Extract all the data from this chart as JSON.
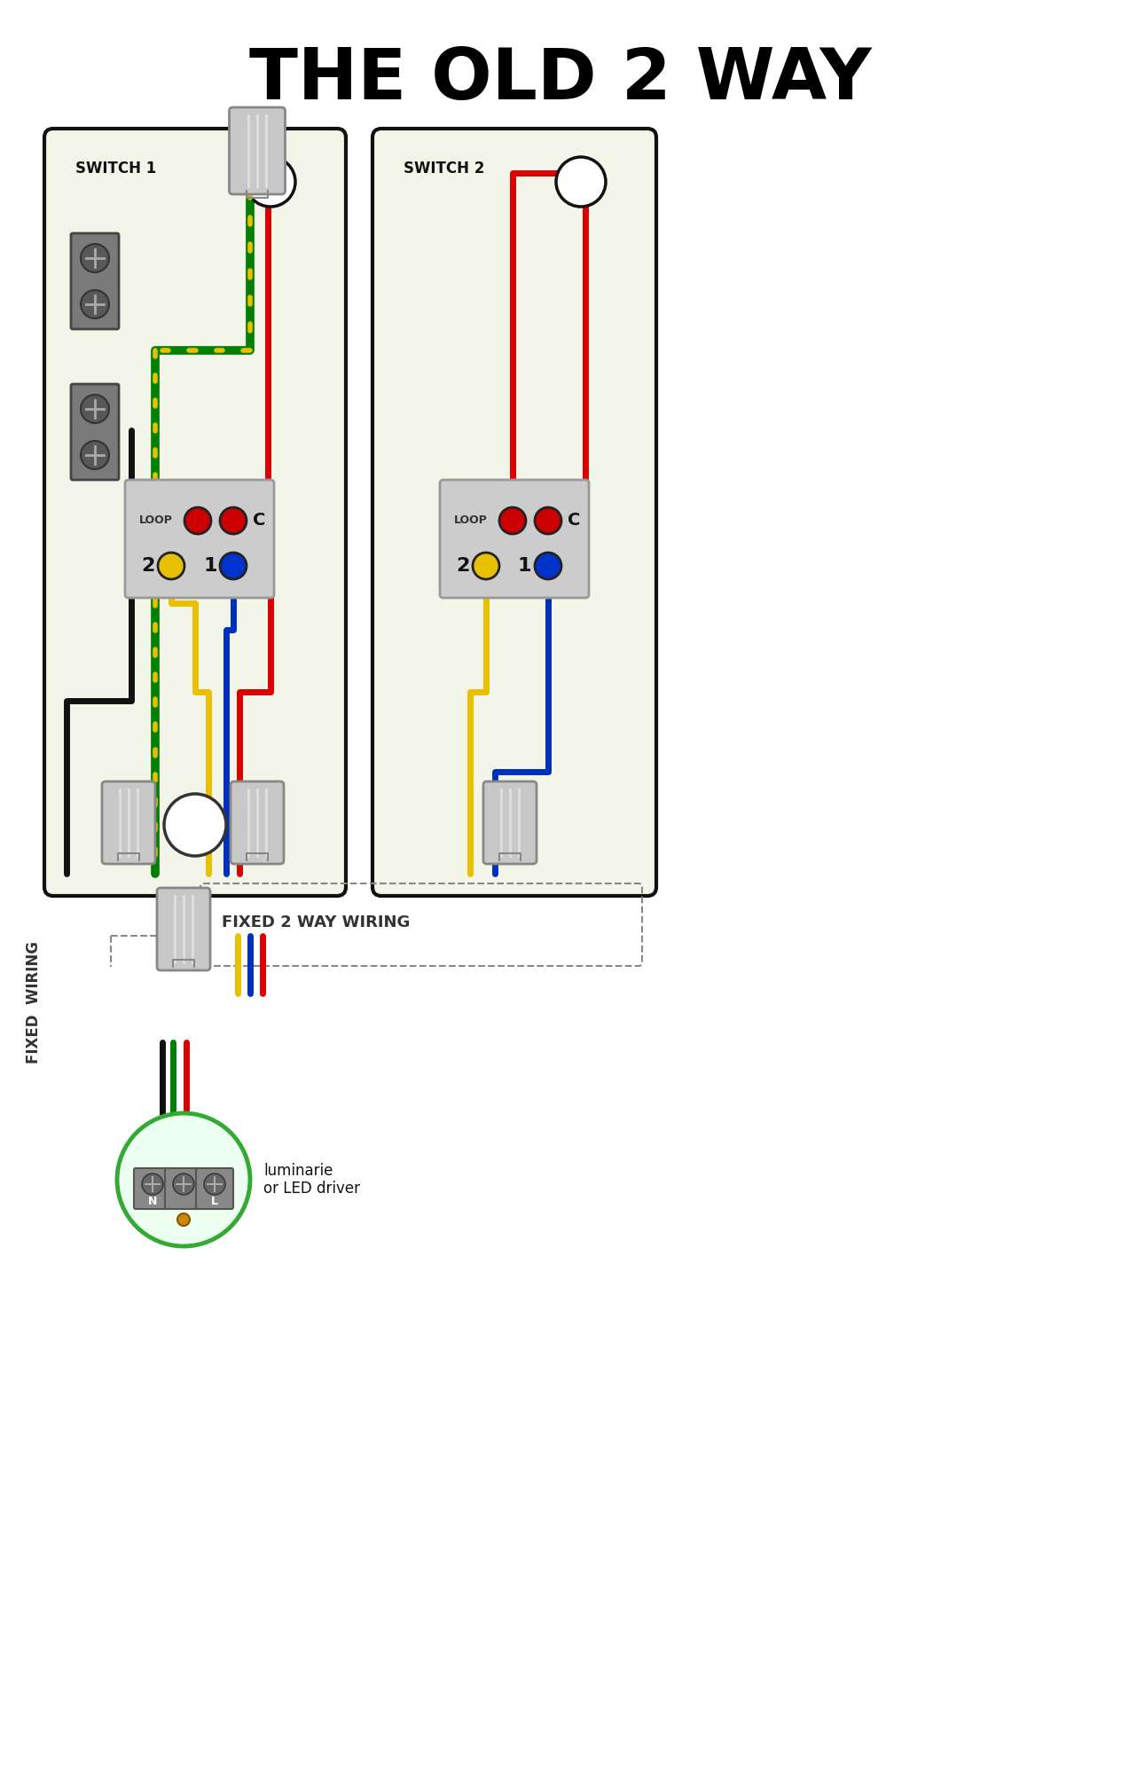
{
  "title": "THE OLD 2 WAY",
  "title_fontsize": 58,
  "title_fontweight": "bold",
  "bg_color": "#ffffff",
  "switch1_label": "SWITCH 1",
  "switch2_label": "SWITCH 2",
  "fixed_wiring_label": "FIXED  WIRING",
  "fixed_2way_label": "FIXED 2 WAY WIRING",
  "luminarie_label": "luminarie\nor LED driver",
  "switch_bg": "#f2f5e8",
  "switch_border": "#111111",
  "wire_red": "#dd0000",
  "wire_green": "#008000",
  "wire_yellow": "#e8c000",
  "wire_black": "#111111",
  "wire_blue": "#0030bb",
  "connector_color": "#c8c8c8",
  "connector_edge": "#888888",
  "terminal_bg": "#888888",
  "terminal_screw": "#666666"
}
